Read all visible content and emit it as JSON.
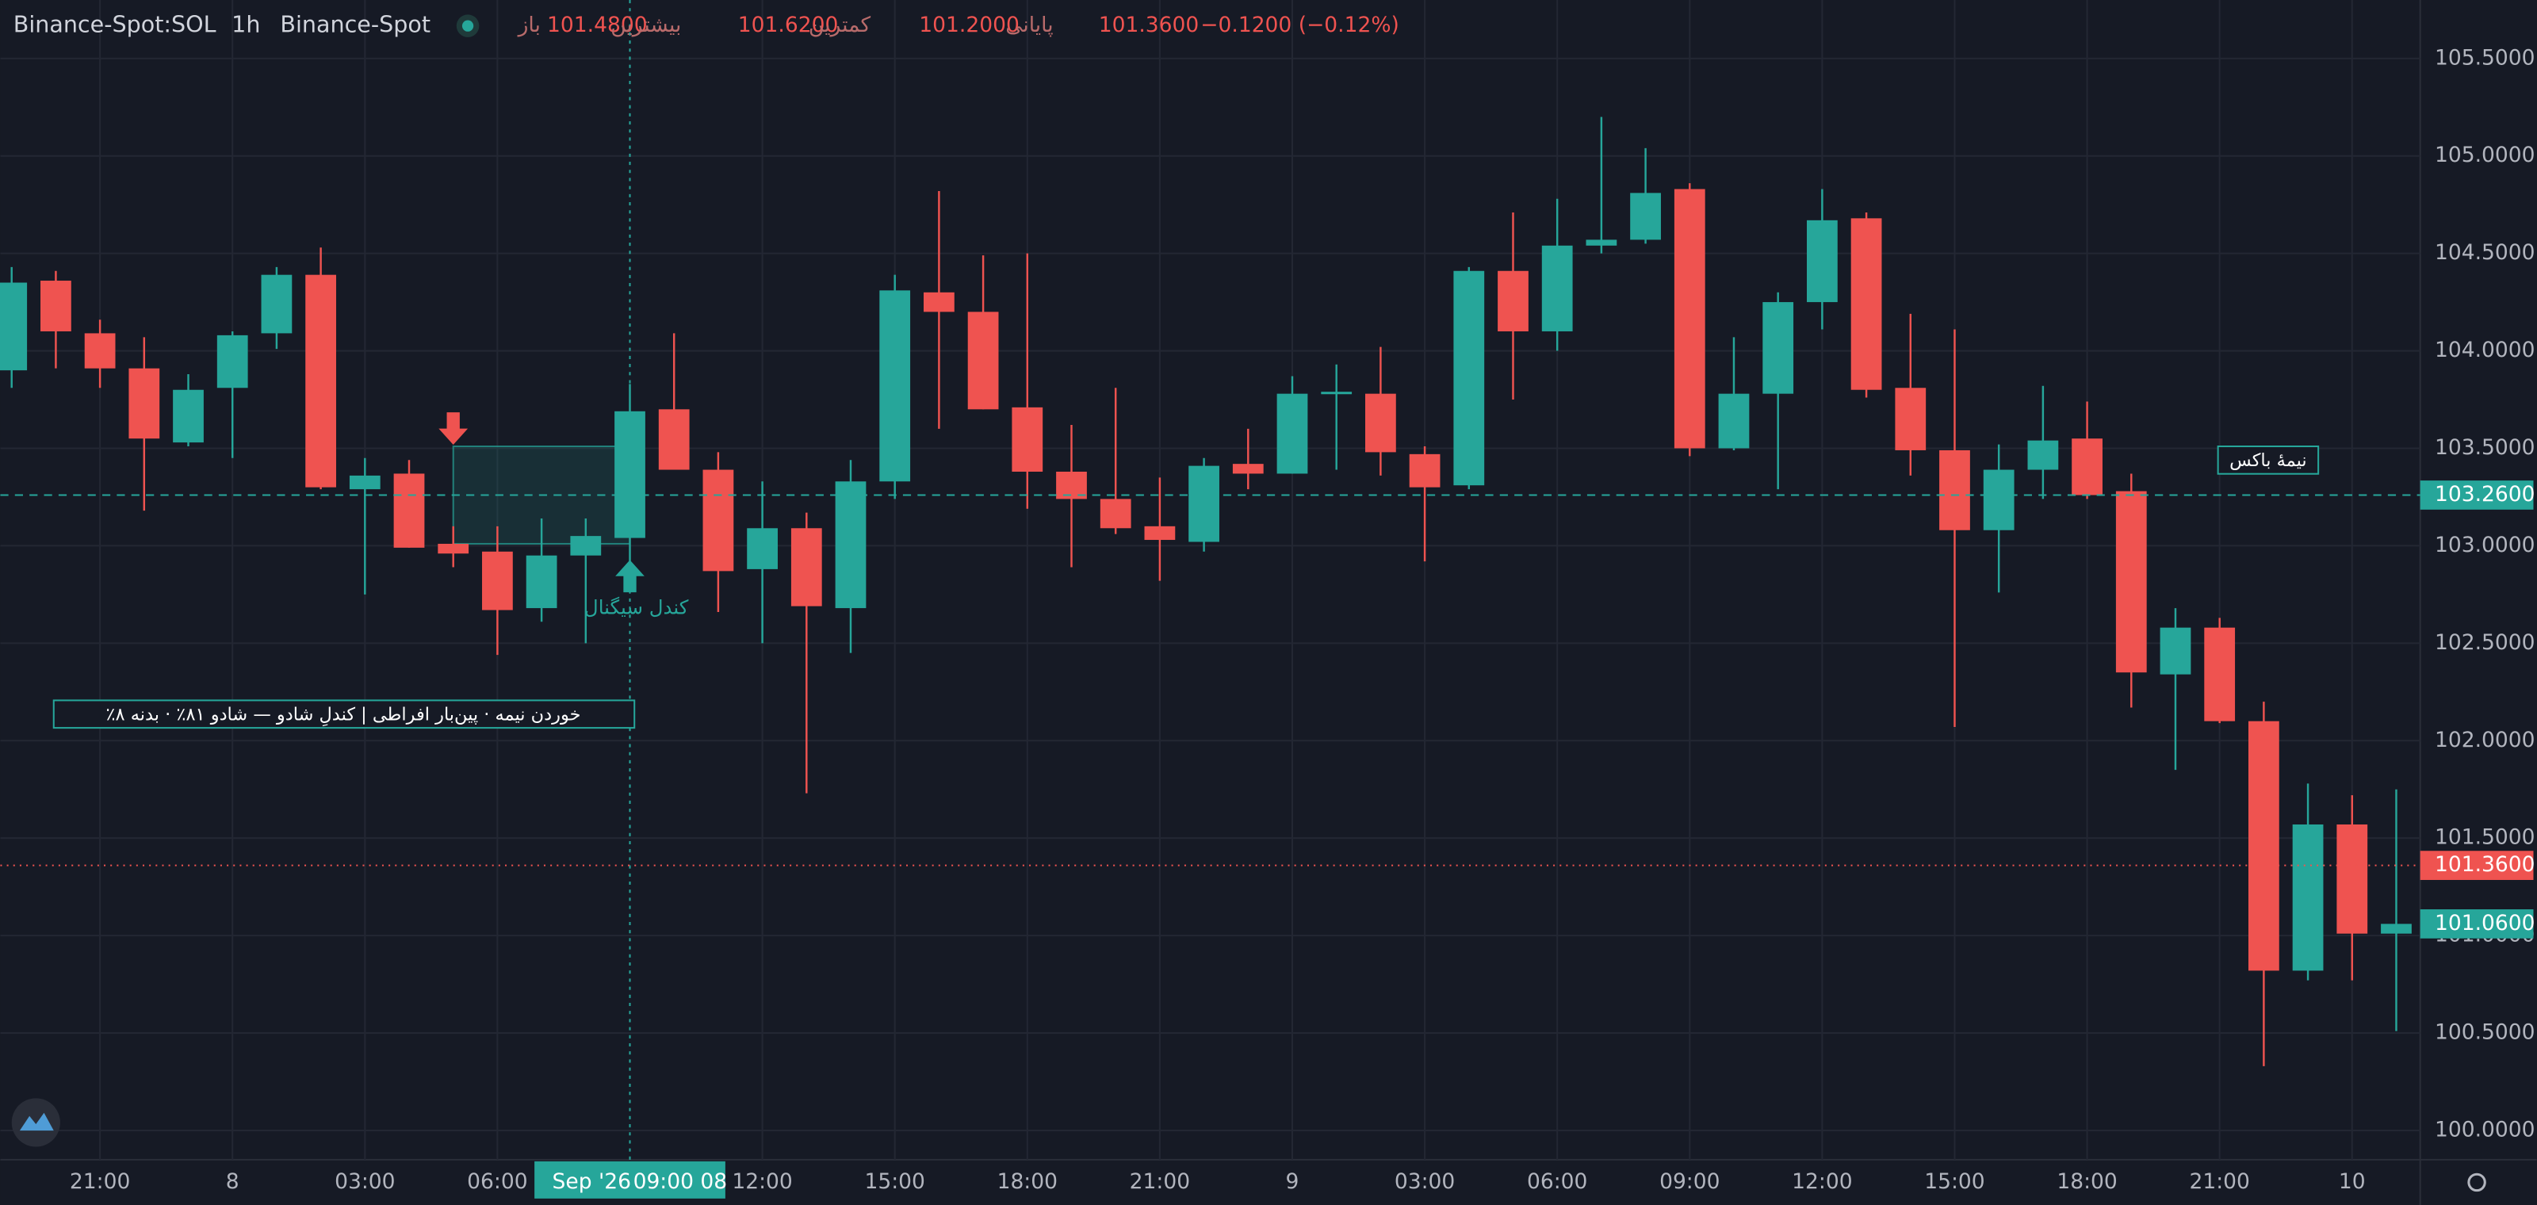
{
  "header": {
    "symbol": "Binance-Spot:SOL",
    "interval": "1h",
    "exchange": "Binance-Spot",
    "ohlc": [
      {
        "name": "باز",
        "price": {
          "value": 101.48,
          "label": "101.4800"
        }
      },
      {
        "name": "بیشترین",
        "price": {
          "value": 101.62,
          "label": "101.6200"
        }
      },
      {
        "name": "کمترین",
        "price": {
          "value": 101.2,
          "label": "101.2000"
        }
      },
      {
        "name": "پایانی",
        "price": {
          "value": 101.36,
          "label": "101.3600"
        }
      }
    ],
    "change": "−0.1200 (−0.12%)"
  },
  "chart_data": {
    "type": "candlestick",
    "up_color": "#26a69a",
    "down_color": "#ef5350",
    "grid": true,
    "categories": [
      null,
      null,
      "21:00",
      null,
      null,
      "8",
      null,
      null,
      "03:00",
      null,
      null,
      "06:00",
      null,
      null,
      null,
      null,
      null,
      "12:00",
      null,
      null,
      "15:00",
      null,
      null,
      "18:00",
      null,
      null,
      "21:00",
      null,
      null,
      "9",
      null,
      null,
      "03:00",
      null,
      null,
      "06:00",
      null,
      null,
      "09:00",
      null,
      null,
      "12:00",
      null,
      null,
      "15:00",
      null,
      null,
      "18:00",
      null,
      null,
      "21:00",
      null,
      null,
      "10",
      null
    ],
    "open": [
      103.9,
      104.36,
      104.09,
      103.91,
      103.53,
      103.81,
      104.09,
      104.39,
      103.29,
      103.37,
      103.01,
      102.97,
      102.68,
      102.95,
      103.04,
      103.7,
      103.39,
      102.88,
      103.09,
      102.68,
      103.33,
      104.3,
      104.2,
      103.71,
      103.38,
      103.24,
      103.1,
      103.02,
      103.42,
      103.37,
      103.78,
      103.78,
      103.47,
      103.31,
      104.41,
      104.1,
      104.54,
      104.57,
      104.83,
      103.5,
      103.78,
      104.25,
      104.68,
      103.81,
      103.49,
      103.08,
      103.39,
      103.55,
      103.28,
      102.34,
      102.58,
      102.1,
      100.82,
      101.57,
      101.01
    ],
    "high": [
      104.43,
      104.41,
      104.16,
      104.07,
      103.88,
      104.1,
      104.43,
      104.53,
      103.45,
      103.44,
      103.1,
      103.1,
      103.14,
      103.14,
      103.83,
      104.09,
      103.48,
      103.33,
      103.17,
      103.44,
      104.39,
      104.82,
      104.49,
      104.5,
      103.62,
      103.81,
      103.35,
      103.45,
      103.6,
      103.87,
      103.93,
      104.02,
      103.51,
      104.43,
      104.71,
      104.78,
      105.2,
      105.04,
      104.86,
      104.07,
      104.3,
      104.83,
      104.71,
      104.19,
      104.11,
      103.52,
      103.82,
      103.74,
      103.37,
      102.68,
      102.63,
      102.2,
      101.78,
      101.72,
      101.75
    ],
    "low": [
      103.81,
      103.91,
      103.81,
      103.18,
      103.51,
      103.45,
      104.01,
      103.29,
      102.75,
      102.99,
      102.89,
      102.44,
      102.61,
      102.5,
      102.92,
      103.39,
      102.66,
      102.5,
      101.73,
      102.45,
      103.24,
      103.6,
      103.7,
      103.19,
      102.89,
      103.06,
      102.82,
      102.97,
      103.29,
      103.37,
      103.39,
      103.36,
      102.92,
      103.29,
      103.75,
      104.0,
      104.5,
      104.55,
      103.46,
      103.49,
      103.29,
      104.11,
      103.76,
      103.36,
      102.07,
      102.76,
      103.24,
      103.24,
      102.17,
      101.85,
      102.09,
      100.33,
      100.77,
      100.77,
      100.51
    ],
    "close": [
      104.35,
      104.1,
      103.91,
      103.55,
      103.8,
      104.08,
      104.39,
      103.3,
      103.36,
      102.99,
      102.96,
      102.67,
      102.95,
      103.05,
      103.69,
      103.39,
      102.87,
      103.09,
      102.69,
      103.33,
      104.31,
      104.2,
      103.7,
      103.38,
      103.24,
      103.09,
      103.03,
      103.41,
      103.37,
      103.78,
      103.79,
      103.48,
      103.3,
      104.41,
      104.1,
      104.54,
      104.57,
      104.81,
      103.5,
      103.78,
      104.25,
      104.67,
      103.8,
      103.49,
      103.08,
      103.39,
      103.54,
      103.26,
      102.35,
      102.58,
      102.1,
      100.82,
      101.57,
      101.01,
      101.06
    ],
    "ylim": [
      99.85,
      105.8
    ],
    "yticks": [
      {
        "value": 100,
        "label": "100.0000"
      },
      {
        "value": 100.5,
        "label": "100.5000"
      },
      {
        "value": 101,
        "label": "101.0000"
      },
      {
        "value": 101.5,
        "label": "101.5000"
      },
      {
        "value": 102,
        "label": "102.0000"
      },
      {
        "value": 102.5,
        "label": "102.5000"
      },
      {
        "value": 103,
        "label": "103.0000"
      },
      {
        "value": 103.5,
        "label": "103.5000"
      },
      {
        "value": 104,
        "label": "104.0000"
      },
      {
        "value": 104.5,
        "label": "104.5000"
      },
      {
        "value": 105,
        "label": "105.0000"
      },
      {
        "value": 105.5,
        "label": "105.5000"
      }
    ],
    "price_lines": [
      {
        "value": 103.26,
        "label": "103.2600",
        "color": "#26a69a",
        "style": "dashed"
      },
      {
        "value": 101.36,
        "label": "101.3600",
        "color": "#ef5350",
        "style": "dotted"
      },
      {
        "value": 101.06,
        "label": "101.0600",
        "color": "#26a69a",
        "style": "none"
      }
    ],
    "crosshair": {
      "date": "Sep '26",
      "time": "09:00 08"
    },
    "signal_box": {
      "high": 103.51,
      "low": 103.01,
      "label": "نیمهٔ باکس"
    },
    "signal_label": "کندل سیگنال",
    "note": "٪خوردن نیمه · پین‌بار افراطی | کندلِ شادو — شادو ۸۱٪ · بدنه ۸"
  }
}
